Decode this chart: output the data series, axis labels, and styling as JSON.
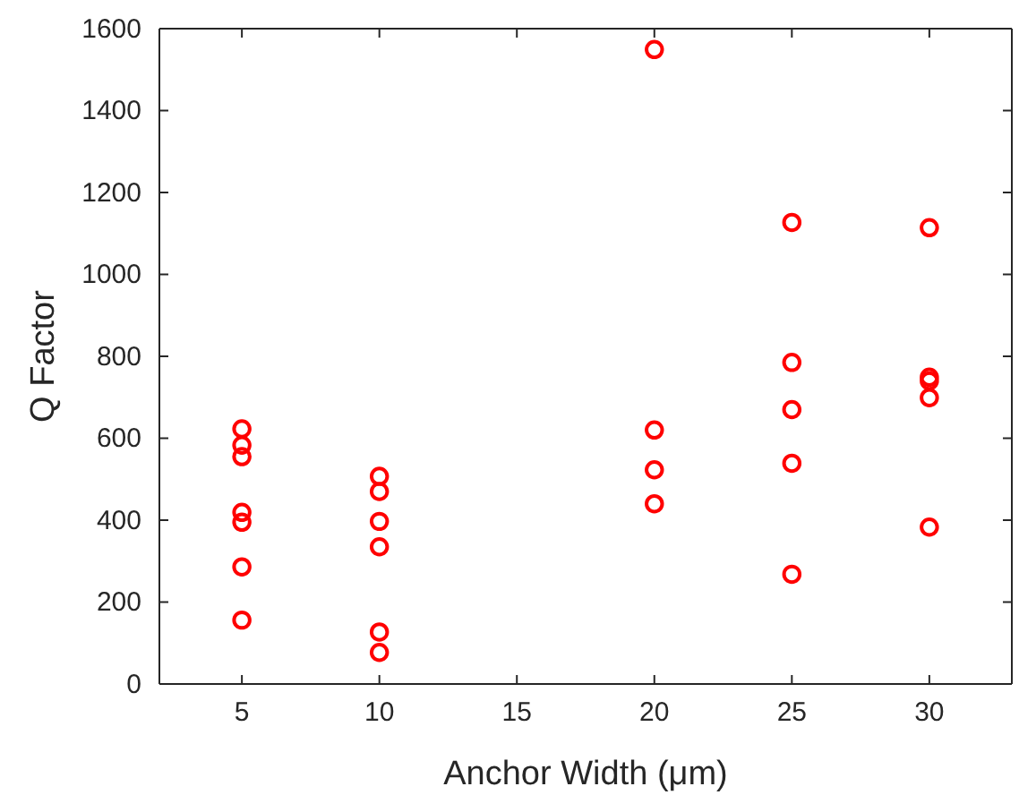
{
  "chart_data": {
    "type": "scatter",
    "xlabel": "Anchor Width (μm)",
    "ylabel": "Q Factor",
    "xlim": [
      2,
      33
    ],
    "xticks": [
      5,
      10,
      15,
      20,
      25,
      30
    ],
    "ylim": [
      0,
      1600
    ],
    "yticks": [
      0,
      200,
      400,
      600,
      800,
      1000,
      1200,
      1400,
      1600
    ],
    "marker": "circle",
    "series": [
      {
        "color": "#ff0000",
        "x": [
          5,
          5,
          5,
          5,
          5,
          5,
          5,
          10,
          10,
          10,
          10,
          10,
          10,
          20,
          20,
          20,
          20,
          25,
          25,
          25,
          25,
          25,
          30,
          30,
          30,
          30,
          30
        ],
        "values": [
          623,
          583,
          555,
          419,
          395,
          286,
          156,
          507,
          470,
          397,
          335,
          127,
          77,
          1549,
          620,
          523,
          440,
          1127,
          785,
          670,
          539,
          268,
          1114,
          749,
          740,
          699,
          383
        ]
      }
    ]
  }
}
